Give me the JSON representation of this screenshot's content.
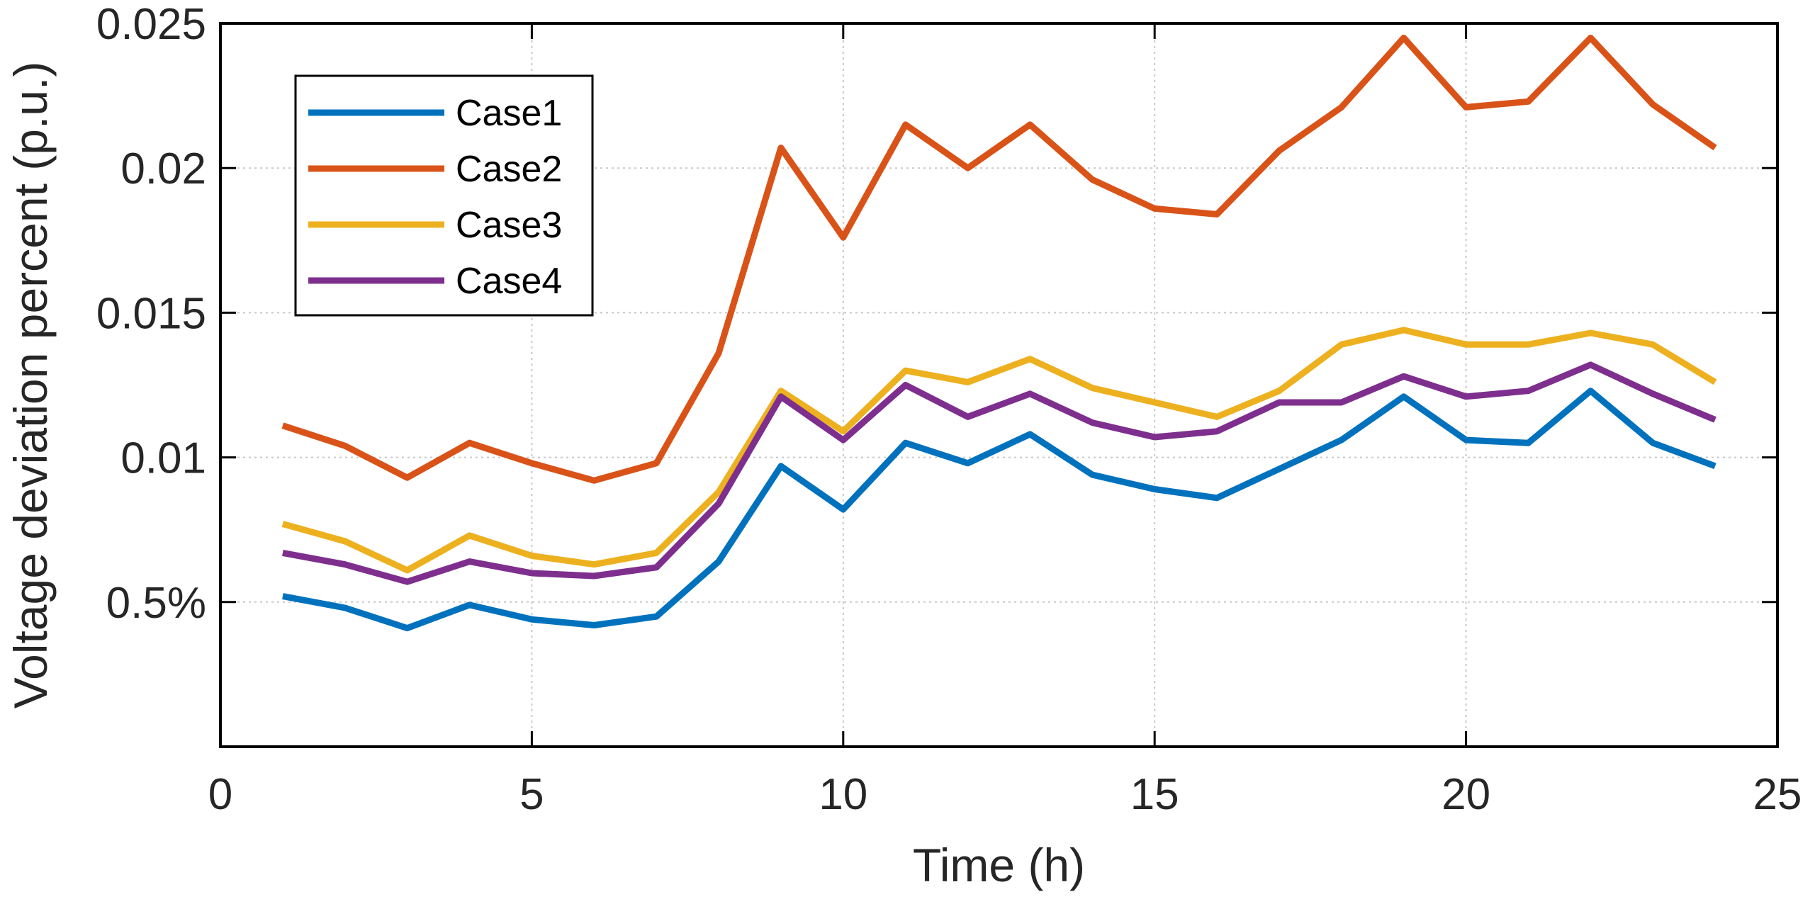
{
  "chart_data": {
    "type": "line",
    "title": "",
    "xlabel": "Time (h)",
    "ylabel": "Voltage deviation percent (p.u.)",
    "xlim": [
      0,
      25
    ],
    "ylim": [
      0,
      0.025
    ],
    "grid": true,
    "legend_position": "top-left",
    "x_ticks": [
      {
        "value": 0,
        "label": "0"
      },
      {
        "value": 5,
        "label": "5"
      },
      {
        "value": 10,
        "label": "10"
      },
      {
        "value": 15,
        "label": "15"
      },
      {
        "value": 20,
        "label": "20"
      },
      {
        "value": 25,
        "label": "25"
      }
    ],
    "y_ticks": [
      {
        "value": 0.005,
        "label": "0.5%"
      },
      {
        "value": 0.01,
        "label": "0.01"
      },
      {
        "value": 0.015,
        "label": "0.015"
      },
      {
        "value": 0.02,
        "label": "0.02"
      },
      {
        "value": 0.025,
        "label": "0.025"
      }
    ],
    "x": [
      1,
      2,
      3,
      4,
      5,
      6,
      7,
      8,
      9,
      10,
      11,
      12,
      13,
      14,
      15,
      16,
      17,
      18,
      19,
      20,
      21,
      22,
      23,
      24
    ],
    "series": [
      {
        "name": "Case1",
        "color": "#0072BD",
        "values": [
          0.0052,
          0.0048,
          0.0041,
          0.0049,
          0.0044,
          0.0042,
          0.0045,
          0.0064,
          0.0097,
          0.0082,
          0.0105,
          0.0098,
          0.0108,
          0.0094,
          0.0089,
          0.0086,
          0.0096,
          0.0106,
          0.0121,
          0.0106,
          0.0105,
          0.0123,
          0.0105,
          0.0097
        ]
      },
      {
        "name": "Case2",
        "color": "#D95319",
        "values": [
          0.0111,
          0.0104,
          0.0093,
          0.0105,
          0.0098,
          0.0092,
          0.0098,
          0.0136,
          0.0207,
          0.0176,
          0.0215,
          0.02,
          0.0215,
          0.0196,
          0.0186,
          0.0184,
          0.0206,
          0.0221,
          0.0245,
          0.0221,
          0.0223,
          0.0245,
          0.0222,
          0.0207
        ]
      },
      {
        "name": "Case3",
        "color": "#EDB120",
        "values": [
          0.0077,
          0.0071,
          0.0061,
          0.0073,
          0.0066,
          0.0063,
          0.0067,
          0.0088,
          0.0123,
          0.0109,
          0.013,
          0.0126,
          0.0134,
          0.0124,
          0.0119,
          0.0114,
          0.0123,
          0.0139,
          0.0144,
          0.0139,
          0.0139,
          0.0143,
          0.0139,
          0.0126
        ]
      },
      {
        "name": "Case4",
        "color": "#7E2F8E",
        "values": [
          0.0067,
          0.0063,
          0.0057,
          0.0064,
          0.006,
          0.0059,
          0.0062,
          0.0084,
          0.0121,
          0.0106,
          0.0125,
          0.0114,
          0.0122,
          0.0112,
          0.0107,
          0.0109,
          0.0119,
          0.0119,
          0.0128,
          0.0121,
          0.0123,
          0.0132,
          0.0122,
          0.0113
        ]
      }
    ]
  }
}
